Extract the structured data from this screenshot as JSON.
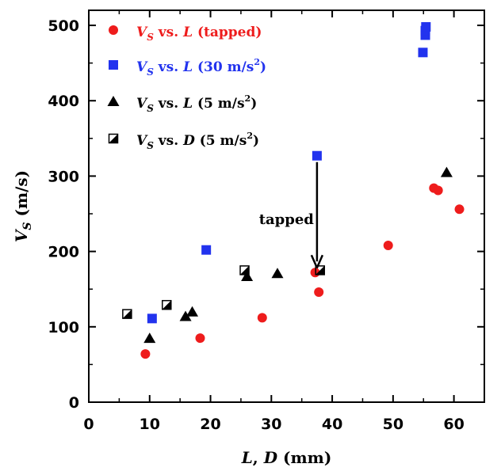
{
  "chart_data": {
    "type": "scatter",
    "title": "",
    "xlabel": "L, D (mm)",
    "ylabel": "VS (m/s)",
    "xlim": [
      0,
      65
    ],
    "ylim": [
      0,
      520
    ],
    "xticks": [
      0,
      10,
      20,
      30,
      40,
      50,
      60
    ],
    "yticks": [
      0,
      100,
      200,
      300,
      400,
      500
    ],
    "grid": false,
    "legend_position": "top-left",
    "series": [
      {
        "name": "Vs vs. L (tapped)",
        "marker": "circle",
        "color": "#ee1c1c",
        "points": [
          [
            9.3,
            64
          ],
          [
            18.3,
            85
          ],
          [
            28.5,
            112
          ],
          [
            37.2,
            172
          ],
          [
            37.8,
            146
          ],
          [
            49.2,
            208
          ],
          [
            56.7,
            284
          ],
          [
            57.4,
            281
          ],
          [
            60.9,
            256
          ]
        ]
      },
      {
        "name": "Vs vs. L (30 m/s2)",
        "marker": "square",
        "color": "#2233ee",
        "points": [
          [
            10.4,
            111
          ],
          [
            19.3,
            202
          ],
          [
            37.5,
            327
          ],
          [
            54.9,
            464
          ],
          [
            55.3,
            487
          ],
          [
            55.3,
            493
          ],
          [
            55.4,
            498
          ]
        ]
      },
      {
        "name": "Vs vs. L (5 m/s2)",
        "marker": "triangle",
        "color": "#000000",
        "points": [
          [
            10.0,
            85
          ],
          [
            15.9,
            114
          ],
          [
            17.0,
            120
          ],
          [
            26.0,
            167
          ],
          [
            31.0,
            171
          ],
          [
            58.8,
            305
          ]
        ]
      },
      {
        "name": "Vs vs. D (5 m/s2)",
        "marker": "half-square",
        "color": "#000000",
        "points": [
          [
            6.3,
            117
          ],
          [
            12.8,
            129
          ],
          [
            25.6,
            175
          ],
          [
            38.0,
            175
          ]
        ]
      }
    ],
    "legend": [
      {
        "sym": "V",
        "sub": "S",
        "mid": " vs. ",
        "var": "L",
        "rest": " (tapped)",
        "sup": "",
        "after": ""
      },
      {
        "sym": "V",
        "sub": "S",
        "mid": " vs. ",
        "var": "L",
        "rest": " (30 m/s",
        "sup": "2",
        "after": ")"
      },
      {
        "sym": "V",
        "sub": "S",
        "mid": " vs. ",
        "var": "L",
        "rest": " (5 m/s",
        "sup": "2",
        "after": ")"
      },
      {
        "sym": "V",
        "sub": "S",
        "mid": " vs. ",
        "var": "D",
        "rest": " (5 m/s",
        "sup": "2",
        "after": ")"
      }
    ],
    "annotations": [
      {
        "text": "tapped",
        "arrow_from": [
          37.5,
          327
        ],
        "arrow_to": [
          37.5,
          172
        ]
      }
    ],
    "axis_title_parts": {
      "x": {
        "a": "L",
        "b": ", ",
        "c": "D",
        "d": " (mm)"
      },
      "y": {
        "a": "V",
        "sub": "S",
        "d": " (m/s)"
      }
    }
  }
}
